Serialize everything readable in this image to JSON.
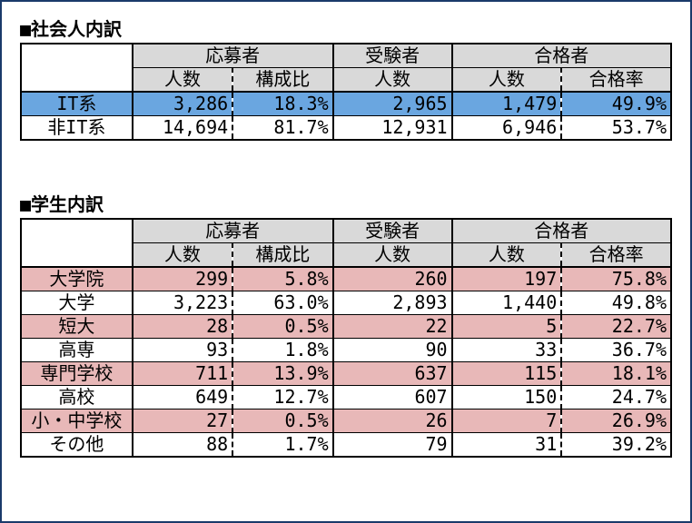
{
  "colors": {
    "page_border": "#1a3a6a",
    "header_bg": "#d9d9d9",
    "highlight_blue": "#6aa6e0",
    "highlight_pink": "#e8b8b8",
    "border": "#000000",
    "background": "#ffffff",
    "text": "#000000"
  },
  "typography": {
    "font_family": "MS Gothic monospace",
    "title_fontsize": 20,
    "cell_fontsize": 20
  },
  "tables": {
    "table1": {
      "title": "■社会人内訳",
      "group_headers": [
        "応募者",
        "受験者",
        "合格者"
      ],
      "sub_headers": {
        "applicants_count": "人数",
        "applicants_ratio": "構成比",
        "examinees_count": "人数",
        "passers_count": "人数",
        "pass_rate": "合格率"
      },
      "rows": [
        {
          "label": "IT系",
          "highlight": "blue",
          "applicants_count": "3,286",
          "applicants_ratio": "18.3%",
          "examinees_count": "2,965",
          "passers_count": "1,479",
          "pass_rate": "49.9%"
        },
        {
          "label": "非IT系",
          "highlight": "none",
          "applicants_count": "14,694",
          "applicants_ratio": "81.7%",
          "examinees_count": "12,931",
          "passers_count": "6,946",
          "pass_rate": "53.7%"
        }
      ]
    },
    "table2": {
      "title": "■学生内訳",
      "group_headers": [
        "応募者",
        "受験者",
        "合格者"
      ],
      "sub_headers": {
        "applicants_count": "人数",
        "applicants_ratio": "構成比",
        "examinees_count": "人数",
        "passers_count": "人数",
        "pass_rate": "合格率"
      },
      "rows": [
        {
          "label": "大学院",
          "highlight": "pink",
          "applicants_count": "299",
          "applicants_ratio": "5.8%",
          "examinees_count": "260",
          "passers_count": "197",
          "pass_rate": "75.8%"
        },
        {
          "label": "大学",
          "highlight": "none",
          "applicants_count": "3,223",
          "applicants_ratio": "63.0%",
          "examinees_count": "2,893",
          "passers_count": "1,440",
          "pass_rate": "49.8%"
        },
        {
          "label": "短大",
          "highlight": "pink",
          "applicants_count": "28",
          "applicants_ratio": "0.5%",
          "examinees_count": "22",
          "passers_count": "5",
          "pass_rate": "22.7%"
        },
        {
          "label": "高専",
          "highlight": "none",
          "applicants_count": "93",
          "applicants_ratio": "1.8%",
          "examinees_count": "90",
          "passers_count": "33",
          "pass_rate": "36.7%"
        },
        {
          "label": "専門学校",
          "highlight": "pink",
          "applicants_count": "711",
          "applicants_ratio": "13.9%",
          "examinees_count": "637",
          "passers_count": "115",
          "pass_rate": "18.1%"
        },
        {
          "label": "高校",
          "highlight": "none",
          "applicants_count": "649",
          "applicants_ratio": "12.7%",
          "examinees_count": "607",
          "passers_count": "150",
          "pass_rate": "24.7%"
        },
        {
          "label": "小・中学校",
          "highlight": "pink",
          "applicants_count": "27",
          "applicants_ratio": "0.5%",
          "examinees_count": "26",
          "passers_count": "7",
          "pass_rate": "26.9%"
        },
        {
          "label": "その他",
          "highlight": "none",
          "applicants_count": "88",
          "applicants_ratio": "1.7%",
          "examinees_count": "79",
          "passers_count": "31",
          "pass_rate": "39.2%"
        }
      ]
    }
  }
}
